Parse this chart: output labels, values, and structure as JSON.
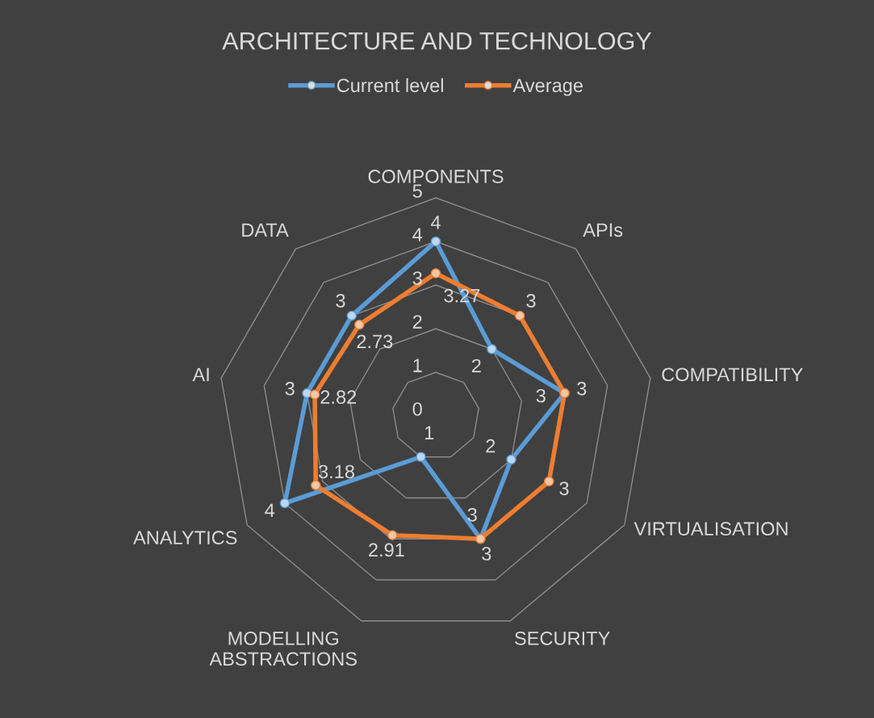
{
  "chart_data": {
    "type": "radar",
    "title": "ARCHITECTURE AND TECHNOLOGY",
    "categories": [
      "COMPONENTS",
      "APIs",
      "COMPATIBILITY",
      "VIRTUALISATION",
      "SECURITY",
      "MODELLING ABSTRACTIONS",
      "ANALYTICS",
      "AI",
      "DATA"
    ],
    "series": [
      {
        "name": "Current level",
        "color": "#5b9bd5",
        "values": [
          4,
          2,
          3,
          2,
          3,
          1,
          4,
          3,
          3
        ]
      },
      {
        "name": "Average",
        "color": "#ed7d31",
        "values": [
          3.27,
          3,
          3,
          3,
          3,
          2.91,
          3.18,
          2.82,
          2.73
        ]
      }
    ],
    "ylim": [
      0,
      5
    ],
    "yticks": [
      0,
      1,
      2,
      3,
      4,
      5
    ],
    "grid": true,
    "legend": "top",
    "marker": "circle",
    "line_style": "solid",
    "data_labels": true
  }
}
